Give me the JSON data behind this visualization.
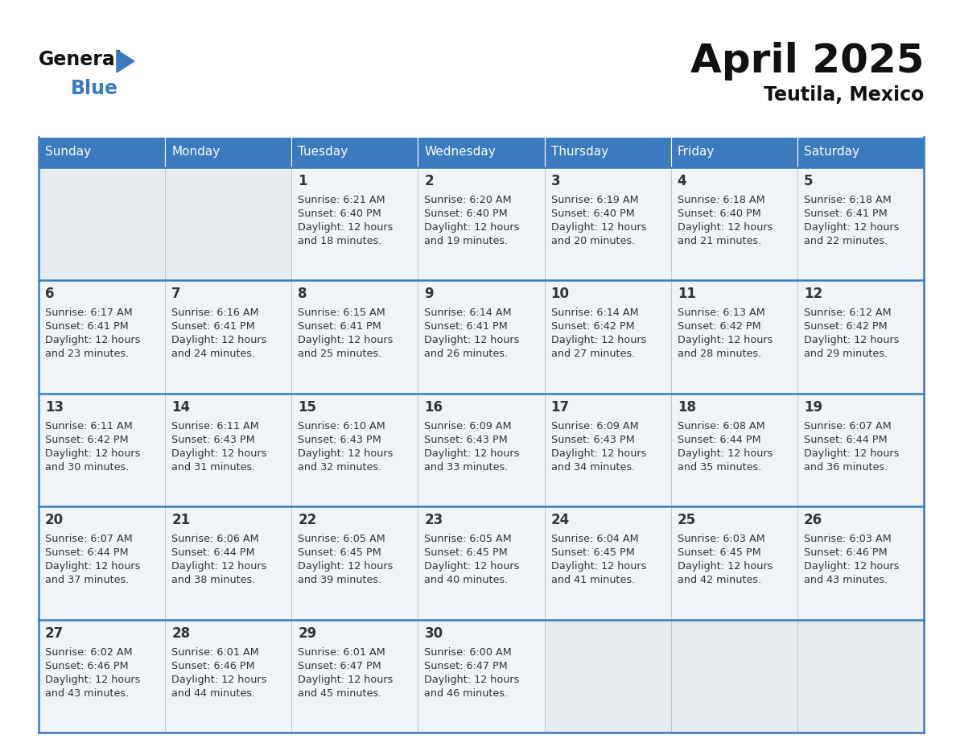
{
  "title": "April 2025",
  "subtitle": "Teutila, Mexico",
  "header_color": "#3a7abf",
  "header_text_color": "#ffffff",
  "day_names": [
    "Sunday",
    "Monday",
    "Tuesday",
    "Wednesday",
    "Thursday",
    "Friday",
    "Saturday"
  ],
  "bg_color": "#ffffff",
  "cell_bg_even": "#f0f4f8",
  "cell_bg_odd": "#e8edf2",
  "cell_bg_empty": "#e0e5ea",
  "border_color": "#3a7abf",
  "cell_border_color": "#bbbbbb",
  "text_color": "#333333",
  "weeks": [
    [
      {
        "day": "",
        "sunrise": "",
        "sunset": "",
        "daylight_h": "",
        "daylight_m": ""
      },
      {
        "day": "",
        "sunrise": "",
        "sunset": "",
        "daylight_h": "",
        "daylight_m": ""
      },
      {
        "day": "1",
        "sunrise": "6:21 AM",
        "sunset": "6:40 PM",
        "daylight_h": "12 hours",
        "daylight_m": "and 18 minutes."
      },
      {
        "day": "2",
        "sunrise": "6:20 AM",
        "sunset": "6:40 PM",
        "daylight_h": "12 hours",
        "daylight_m": "and 19 minutes."
      },
      {
        "day": "3",
        "sunrise": "6:19 AM",
        "sunset": "6:40 PM",
        "daylight_h": "12 hours",
        "daylight_m": "and 20 minutes."
      },
      {
        "day": "4",
        "sunrise": "6:18 AM",
        "sunset": "6:40 PM",
        "daylight_h": "12 hours",
        "daylight_m": "and 21 minutes."
      },
      {
        "day": "5",
        "sunrise": "6:18 AM",
        "sunset": "6:41 PM",
        "daylight_h": "12 hours",
        "daylight_m": "and 22 minutes."
      }
    ],
    [
      {
        "day": "6",
        "sunrise": "6:17 AM",
        "sunset": "6:41 PM",
        "daylight_h": "12 hours",
        "daylight_m": "and 23 minutes."
      },
      {
        "day": "7",
        "sunrise": "6:16 AM",
        "sunset": "6:41 PM",
        "daylight_h": "12 hours",
        "daylight_m": "and 24 minutes."
      },
      {
        "day": "8",
        "sunrise": "6:15 AM",
        "sunset": "6:41 PM",
        "daylight_h": "12 hours",
        "daylight_m": "and 25 minutes."
      },
      {
        "day": "9",
        "sunrise": "6:14 AM",
        "sunset": "6:41 PM",
        "daylight_h": "12 hours",
        "daylight_m": "and 26 minutes."
      },
      {
        "day": "10",
        "sunrise": "6:14 AM",
        "sunset": "6:42 PM",
        "daylight_h": "12 hours",
        "daylight_m": "and 27 minutes."
      },
      {
        "day": "11",
        "sunrise": "6:13 AM",
        "sunset": "6:42 PM",
        "daylight_h": "12 hours",
        "daylight_m": "and 28 minutes."
      },
      {
        "day": "12",
        "sunrise": "6:12 AM",
        "sunset": "6:42 PM",
        "daylight_h": "12 hours",
        "daylight_m": "and 29 minutes."
      }
    ],
    [
      {
        "day": "13",
        "sunrise": "6:11 AM",
        "sunset": "6:42 PM",
        "daylight_h": "12 hours",
        "daylight_m": "and 30 minutes."
      },
      {
        "day": "14",
        "sunrise": "6:11 AM",
        "sunset": "6:43 PM",
        "daylight_h": "12 hours",
        "daylight_m": "and 31 minutes."
      },
      {
        "day": "15",
        "sunrise": "6:10 AM",
        "sunset": "6:43 PM",
        "daylight_h": "12 hours",
        "daylight_m": "and 32 minutes."
      },
      {
        "day": "16",
        "sunrise": "6:09 AM",
        "sunset": "6:43 PM",
        "daylight_h": "12 hours",
        "daylight_m": "and 33 minutes."
      },
      {
        "day": "17",
        "sunrise": "6:09 AM",
        "sunset": "6:43 PM",
        "daylight_h": "12 hours",
        "daylight_m": "and 34 minutes."
      },
      {
        "day": "18",
        "sunrise": "6:08 AM",
        "sunset": "6:44 PM",
        "daylight_h": "12 hours",
        "daylight_m": "and 35 minutes."
      },
      {
        "day": "19",
        "sunrise": "6:07 AM",
        "sunset": "6:44 PM",
        "daylight_h": "12 hours",
        "daylight_m": "and 36 minutes."
      }
    ],
    [
      {
        "day": "20",
        "sunrise": "6:07 AM",
        "sunset": "6:44 PM",
        "daylight_h": "12 hours",
        "daylight_m": "and 37 minutes."
      },
      {
        "day": "21",
        "sunrise": "6:06 AM",
        "sunset": "6:44 PM",
        "daylight_h": "12 hours",
        "daylight_m": "and 38 minutes."
      },
      {
        "day": "22",
        "sunrise": "6:05 AM",
        "sunset": "6:45 PM",
        "daylight_h": "12 hours",
        "daylight_m": "and 39 minutes."
      },
      {
        "day": "23",
        "sunrise": "6:05 AM",
        "sunset": "6:45 PM",
        "daylight_h": "12 hours",
        "daylight_m": "and 40 minutes."
      },
      {
        "day": "24",
        "sunrise": "6:04 AM",
        "sunset": "6:45 PM",
        "daylight_h": "12 hours",
        "daylight_m": "and 41 minutes."
      },
      {
        "day": "25",
        "sunrise": "6:03 AM",
        "sunset": "6:45 PM",
        "daylight_h": "12 hours",
        "daylight_m": "and 42 minutes."
      },
      {
        "day": "26",
        "sunrise": "6:03 AM",
        "sunset": "6:46 PM",
        "daylight_h": "12 hours",
        "daylight_m": "and 43 minutes."
      }
    ],
    [
      {
        "day": "27",
        "sunrise": "6:02 AM",
        "sunset": "6:46 PM",
        "daylight_h": "12 hours",
        "daylight_m": "and 43 minutes."
      },
      {
        "day": "28",
        "sunrise": "6:01 AM",
        "sunset": "6:46 PM",
        "daylight_h": "12 hours",
        "daylight_m": "and 44 minutes."
      },
      {
        "day": "29",
        "sunrise": "6:01 AM",
        "sunset": "6:47 PM",
        "daylight_h": "12 hours",
        "daylight_m": "and 45 minutes."
      },
      {
        "day": "30",
        "sunrise": "6:00 AM",
        "sunset": "6:47 PM",
        "daylight_h": "12 hours",
        "daylight_m": "and 46 minutes."
      },
      {
        "day": "",
        "sunrise": "",
        "sunset": "",
        "daylight_h": "",
        "daylight_m": ""
      },
      {
        "day": "",
        "sunrise": "",
        "sunset": "",
        "daylight_h": "",
        "daylight_m": ""
      },
      {
        "day": "",
        "sunrise": "",
        "sunset": "",
        "daylight_h": "",
        "daylight_m": ""
      }
    ]
  ]
}
